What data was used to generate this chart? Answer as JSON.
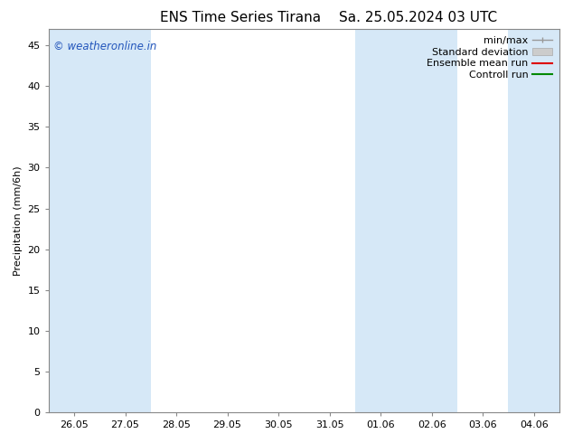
{
  "title": "ENS Time Series Tirana",
  "subtitle": "Sa. 25.05.2024 03 UTC",
  "ylabel": "Precipitation (mm/6h)",
  "ylim": [
    0,
    47
  ],
  "yticks": [
    0,
    5,
    10,
    15,
    20,
    25,
    30,
    35,
    40,
    45
  ],
  "xtick_labels": [
    "26.05",
    "27.05",
    "28.05",
    "29.05",
    "30.05",
    "31.05",
    "01.06",
    "02.06",
    "03.06",
    "04.06"
  ],
  "xlim": [
    0,
    40
  ],
  "shade_color": "#d6e8f7",
  "white_color": "#ffffff",
  "plot_bg_color": "#d6e8f7",
  "watermark_text": "© weatheronline.in",
  "watermark_color": "#2255bb",
  "title_fontsize": 11,
  "axis_fontsize": 8,
  "tick_fontsize": 8,
  "legend_fontsize": 8,
  "white_bands": [
    [
      2.0,
      4.0
    ],
    [
      8.0,
      10.0
    ],
    [
      12.0,
      14.0
    ],
    [
      16.0,
      18.0
    ],
    [
      20.0,
      22.0
    ],
    [
      28.0,
      32.0
    ],
    [
      34.0,
      36.0
    ]
  ],
  "shade_bands": [
    [
      0.0,
      2.0
    ],
    [
      4.0,
      8.0
    ],
    [
      24.0,
      28.0
    ],
    [
      32.0,
      34.0
    ],
    [
      38.0,
      40.0
    ]
  ]
}
